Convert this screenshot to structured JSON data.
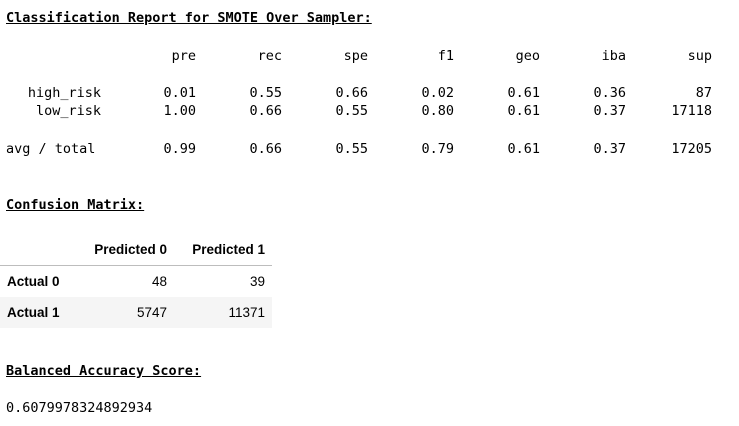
{
  "classification_report": {
    "heading": "Classification Report for SMOTE Over Sampler:",
    "columns": [
      "pre",
      "rec",
      "spe",
      "f1",
      "geo",
      "iba",
      "sup"
    ],
    "rows": [
      {
        "label": "high_risk",
        "values": [
          "0.01",
          "0.55",
          "0.66",
          "0.02",
          "0.61",
          "0.36",
          "87"
        ]
      },
      {
        "label": "low_risk",
        "values": [
          "1.00",
          "0.66",
          "0.55",
          "0.80",
          "0.61",
          "0.37",
          "17118"
        ]
      }
    ],
    "avg_row": {
      "label": "avg / total",
      "values": [
        "0.99",
        "0.66",
        "0.55",
        "0.79",
        "0.61",
        "0.37",
        "17205"
      ]
    }
  },
  "confusion_matrix": {
    "heading": "Confusion Matrix:",
    "columns": [
      "Predicted 0",
      "Predicted 1"
    ],
    "rows": [
      {
        "label": "Actual 0",
        "values": [
          "48",
          "39"
        ]
      },
      {
        "label": "Actual 1",
        "values": [
          "5747",
          "11371"
        ]
      }
    ]
  },
  "balanced_accuracy": {
    "heading": "Balanced Accuracy Score:",
    "value": "0.6079978324892934"
  }
}
